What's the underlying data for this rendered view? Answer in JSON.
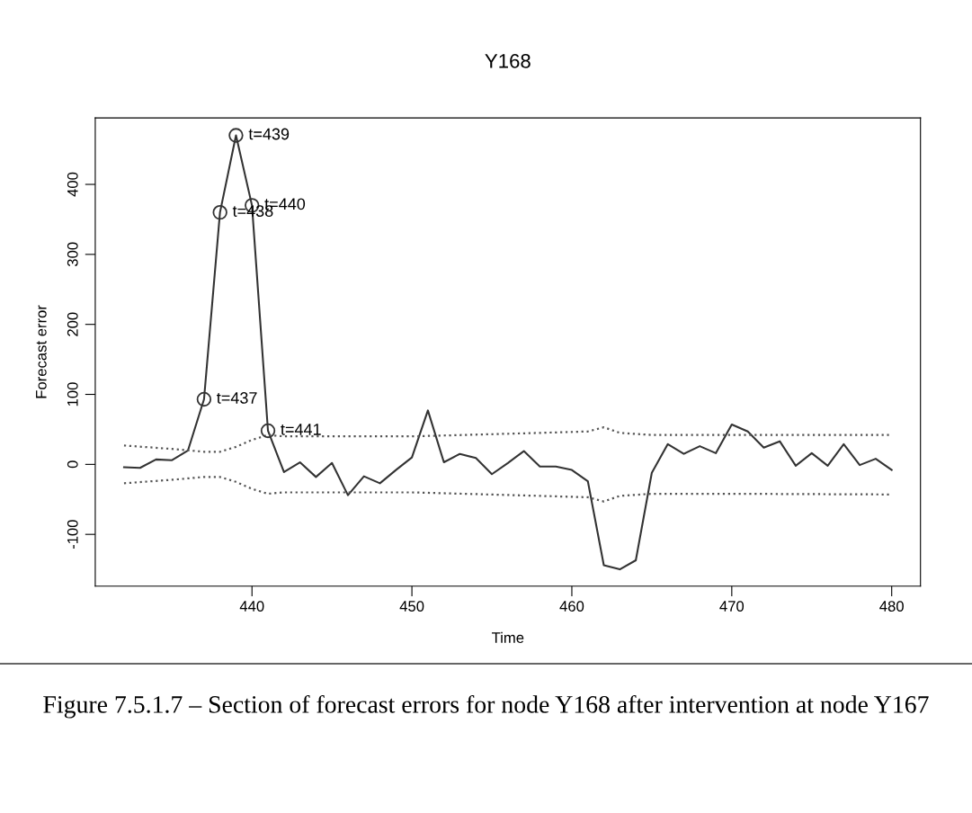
{
  "chart_data": {
    "type": "line",
    "title": "Y168",
    "xlabel": "Time",
    "ylabel": "Forecast error",
    "xlim": [
      430.2,
      481.8
    ],
    "ylim": [
      -174,
      495
    ],
    "xticks": [
      440,
      450,
      460,
      470,
      480
    ],
    "yticks": [
      -100,
      0,
      100,
      200,
      300,
      400
    ],
    "grid": false,
    "legend": false,
    "series": [
      {
        "color": "#333333",
        "line_style": "solid",
        "x": [
          432,
          433,
          434,
          435,
          436,
          437,
          438,
          439,
          440,
          441,
          442,
          443,
          444,
          445,
          446,
          447,
          448,
          449,
          450,
          451,
          452,
          453,
          454,
          455,
          456,
          457,
          458,
          459,
          460,
          461,
          462,
          463,
          464,
          465,
          466,
          467,
          468,
          469,
          470,
          471,
          472,
          473,
          474,
          475,
          476,
          477,
          478,
          479,
          480
        ],
        "values": [
          -4,
          -5,
          7,
          6,
          20,
          93,
          360,
          470,
          370,
          48,
          -11,
          3,
          -18,
          2,
          -44,
          -17,
          -27,
          -8,
          10,
          77,
          3,
          15,
          9,
          -14,
          2,
          19,
          -3,
          -3,
          -8,
          -24,
          -144,
          -150,
          -137,
          -12,
          29,
          15,
          26,
          16,
          57,
          47,
          24,
          33,
          -2,
          16,
          -2,
          29,
          -1,
          8,
          -8
        ]
      },
      {
        "type": "line",
        "color": "#555555",
        "line_style": "dotted",
        "x": [
          432,
          435,
          437,
          438,
          439,
          440,
          441,
          442,
          450,
          458,
          461,
          462,
          463,
          465,
          470,
          480
        ],
        "values": [
          27,
          22,
          18,
          18,
          25,
          35,
          42,
          40,
          40,
          45,
          47,
          53,
          45,
          42,
          42,
          42
        ]
      },
      {
        "type": "line",
        "color": "#555555",
        "line_style": "dotted",
        "x": [
          432,
          435,
          437,
          438,
          439,
          440,
          441,
          442,
          450,
          458,
          461,
          462,
          463,
          465,
          470,
          480
        ],
        "values": [
          -27,
          -22,
          -18,
          -18,
          -25,
          -35,
          -42,
          -40,
          -40,
          -45,
          -47,
          -53,
          -45,
          -42,
          -42,
          -43
        ]
      },
      {
        "type": "scatter",
        "color": "#333333",
        "marker": "circle",
        "x": [
          437,
          438,
          439,
          440,
          441
        ],
        "values": [
          93,
          360,
          470,
          370,
          48
        ]
      }
    ],
    "annotations": [
      {
        "text": "t=437",
        "x": 437,
        "y": 93
      },
      {
        "text": "t=438",
        "x": 438,
        "y": 360
      },
      {
        "text": "t=439",
        "x": 439,
        "y": 470
      },
      {
        "text": "t=440",
        "x": 440,
        "y": 370
      },
      {
        "text": "t=441",
        "x": 441,
        "y": 48
      },
      "Figure 7.5.1.7 – Section of forecast errors for node Y168 after intervention at node Y167"
    ]
  }
}
